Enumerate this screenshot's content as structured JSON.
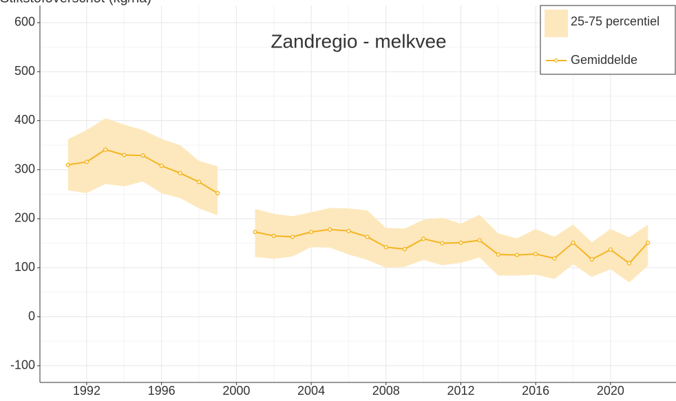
{
  "chart_data": {
    "type": "line",
    "y_label": "Stikstofoverschot (kg/ha)",
    "title": "Zandregio - melkvee",
    "x": [
      1991,
      1992,
      1993,
      1994,
      1995,
      1996,
      1997,
      1998,
      1999,
      2000,
      2001,
      2002,
      2003,
      2004,
      2005,
      2006,
      2007,
      2008,
      2009,
      2010,
      2011,
      2012,
      2013,
      2014,
      2015,
      2016,
      2017,
      2018,
      2019,
      2020,
      2021,
      2022
    ],
    "band": {
      "name": "25-75 percentiel",
      "color": "#fde8bd",
      "lower": [
        258,
        252,
        271,
        266,
        276,
        252,
        242,
        221,
        207,
        null,
        122,
        118,
        123,
        142,
        141,
        127,
        116,
        100,
        102,
        116,
        105,
        110,
        121,
        84,
        84,
        86,
        77,
        107,
        81,
        97,
        70,
        104
      ],
      "upper": [
        362,
        381,
        405,
        392,
        381,
        363,
        350,
        318,
        307,
        null,
        220,
        210,
        205,
        213,
        222,
        221,
        217,
        181,
        180,
        198,
        202,
        190,
        208,
        170,
        160,
        179,
        163,
        188,
        152,
        179,
        162,
        188
      ]
    },
    "series": [
      {
        "name": "Gemiddelde",
        "color": "#f5b31e",
        "values": [
          310,
          316,
          341,
          330,
          329,
          308,
          293,
          275,
          252,
          null,
          173,
          165,
          163,
          173,
          178,
          175,
          163,
          142,
          138,
          159,
          150,
          151,
          156,
          127,
          126,
          128,
          119,
          151,
          117,
          137,
          109,
          151
        ]
      }
    ],
    "xlim": [
      1989.5,
      2023.5
    ],
    "xticks": [
      1992,
      1996,
      2000,
      2004,
      2008,
      2012,
      2016,
      2020
    ],
    "ylim": [
      -134,
      635
    ],
    "yticks": [
      -100,
      0,
      100,
      200,
      300,
      400,
      500,
      600
    ],
    "grid": true,
    "legend": "top-right"
  }
}
